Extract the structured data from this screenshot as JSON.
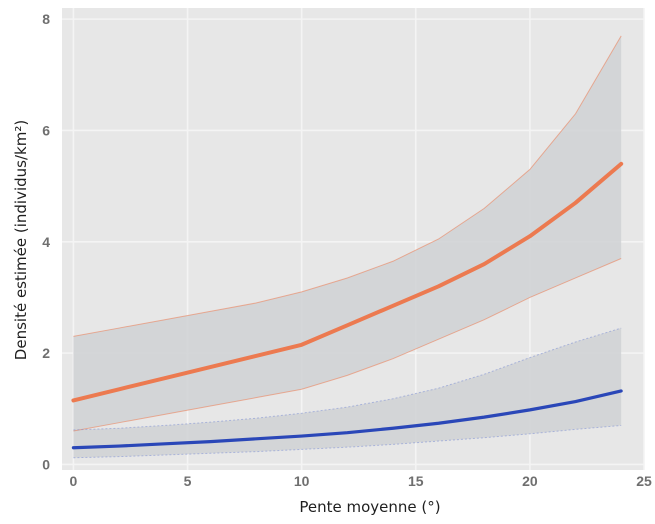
{
  "chart_data": {
    "type": "line",
    "title": "",
    "xlabel": "Pente moyenne (°)",
    "ylabel": "Densité estimée (individus/km²)",
    "xlim": [
      -0.5,
      25
    ],
    "ylim": [
      -0.1,
      8.2
    ],
    "x_ticks": [
      "0",
      "5",
      "10",
      "15",
      "20",
      "25"
    ],
    "y_ticks": [
      "0",
      "2",
      "4",
      "6",
      "8"
    ],
    "grid": true,
    "colors": {
      "panel_background": "#e7e7e7",
      "grid": "#f4f4f4",
      "ribbon": "#cfd1d4",
      "orange_line": "#ec7a50",
      "blue_line": "#2a47b8",
      "blue_bound": "#7d8fd6"
    },
    "series": [
      {
        "color": "orange",
        "x": [
          0,
          2,
          4,
          6,
          8,
          10,
          12,
          14,
          16,
          18,
          20,
          22,
          24
        ],
        "values": [
          1.15,
          1.35,
          1.55,
          1.75,
          1.95,
          2.15,
          2.5,
          2.85,
          3.2,
          3.6,
          4.1,
          4.7,
          5.4
        ],
        "lower": [
          0.6,
          0.75,
          0.9,
          1.05,
          1.2,
          1.35,
          1.6,
          1.9,
          2.25,
          2.6,
          3.0,
          3.35,
          3.7
        ],
        "upper": [
          2.3,
          2.45,
          2.6,
          2.75,
          2.9,
          3.1,
          3.35,
          3.65,
          4.05,
          4.6,
          5.3,
          6.3,
          7.7
        ]
      },
      {
        "color": "blue",
        "x": [
          0,
          2,
          4,
          6,
          8,
          10,
          12,
          14,
          16,
          18,
          20,
          22,
          24
        ],
        "values": [
          0.3,
          0.33,
          0.37,
          0.41,
          0.46,
          0.51,
          0.57,
          0.65,
          0.74,
          0.85,
          0.98,
          1.13,
          1.32
        ],
        "lower": [
          0.12,
          0.14,
          0.17,
          0.2,
          0.23,
          0.27,
          0.31,
          0.36,
          0.42,
          0.48,
          0.55,
          0.63,
          0.7
        ],
        "upper": [
          0.62,
          0.65,
          0.7,
          0.76,
          0.83,
          0.92,
          1.03,
          1.18,
          1.37,
          1.62,
          1.92,
          2.2,
          2.45
        ]
      }
    ]
  }
}
